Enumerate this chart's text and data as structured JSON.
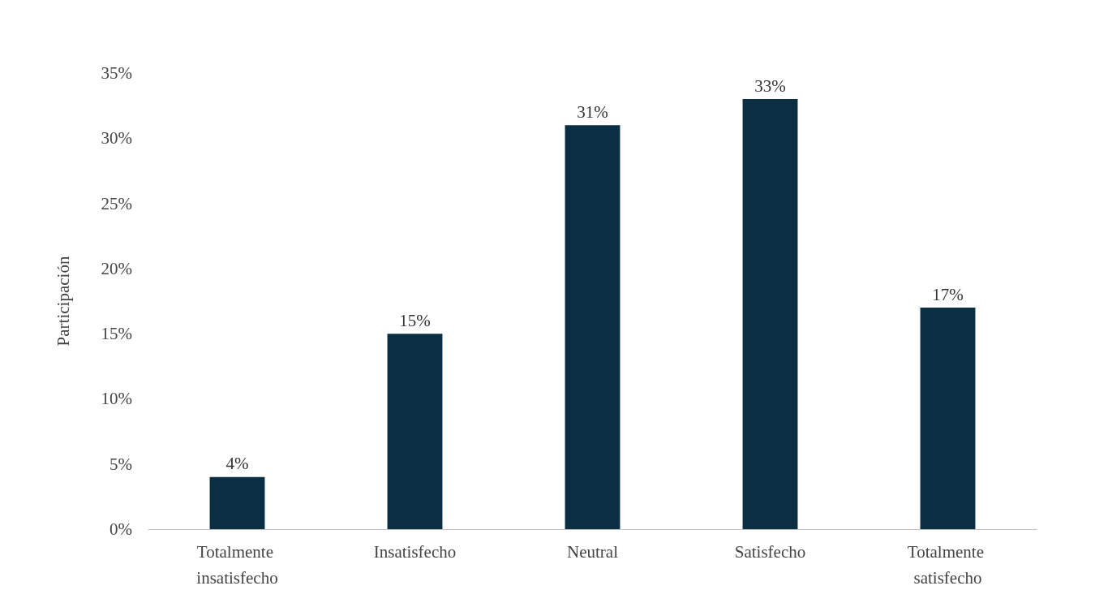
{
  "chart_data": {
    "type": "bar",
    "ylabel": "Participación",
    "categories": [
      "Totalmente insatisfecho",
      "Insatisfecho",
      "Neutral",
      "Satisfecho",
      "Totalmente satisfecho"
    ],
    "values": [
      4,
      15,
      31,
      33,
      17
    ],
    "value_labels": [
      "4%",
      "15%",
      "31%",
      "33%",
      "17%"
    ],
    "color": "#0b2f42",
    "ylim": [
      0,
      35
    ],
    "yticks": [
      {
        "value": 0,
        "label": "0%"
      },
      {
        "value": 5,
        "label": "5%"
      },
      {
        "value": 10,
        "label": "10%"
      },
      {
        "value": 15,
        "label": "15%"
      },
      {
        "value": 20,
        "label": "20%"
      },
      {
        "value": 25,
        "label": "25%"
      },
      {
        "value": 30,
        "label": "30%"
      },
      {
        "value": 35,
        "label": "35%"
      }
    ],
    "grid": false
  }
}
